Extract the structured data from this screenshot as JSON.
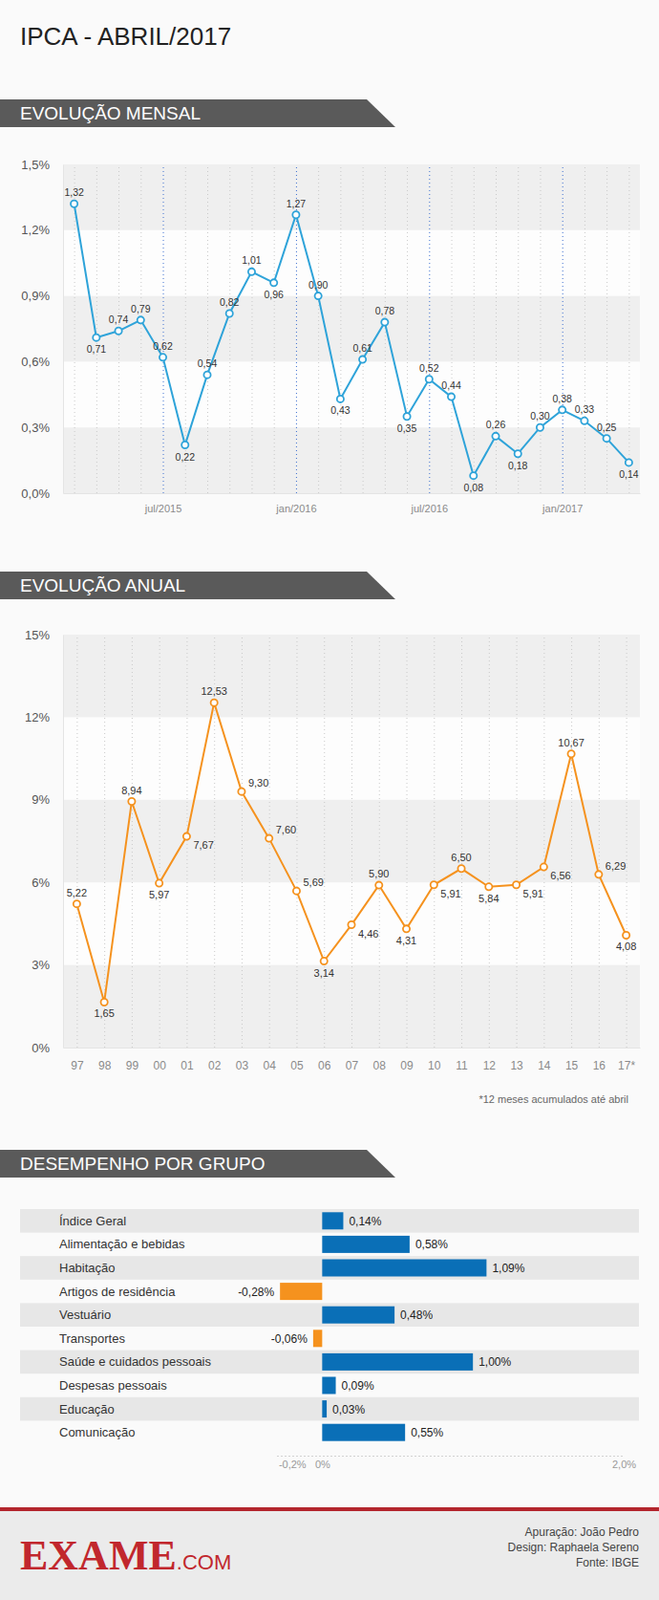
{
  "title": "IPCA - ABRIL/2017",
  "chart_data": [
    {
      "type": "line",
      "title": "EVOLUÇÃO MENSAL",
      "categories": [
        null,
        null,
        null,
        null,
        "jul/2015",
        null,
        null,
        null,
        null,
        null,
        "jan/2016",
        null,
        null,
        null,
        null,
        null,
        "jul/2016",
        null,
        null,
        null,
        null,
        null,
        "jan/2017",
        null,
        null,
        null
      ],
      "values": [
        1.32,
        0.71,
        0.74,
        0.79,
        0.62,
        0.22,
        0.54,
        0.82,
        1.01,
        0.96,
        1.27,
        0.9,
        0.43,
        0.61,
        0.78,
        0.35,
        0.52,
        0.44,
        0.08,
        0.26,
        0.18,
        0.3,
        0.38,
        0.33,
        0.25,
        0.14
      ],
      "value_labels": [
        "1,32",
        "0,71",
        "0,74",
        "0,79",
        "0,62",
        "0,22",
        "0,54",
        "0,82",
        "1,01",
        "0,96",
        "1,27",
        "0,90",
        "0,43",
        "0,61",
        "0,78",
        "0,35",
        "0,52",
        "0,44",
        "0,08",
        "0,26",
        "0,18",
        "0,30",
        "0,38",
        "0,33",
        "0,25",
        "0,14"
      ],
      "color": "#2ea3d9",
      "marker": "circle",
      "ylim": [
        0,
        1.5
      ],
      "yticks": [
        {
          "value": 0,
          "label": "0,0%"
        },
        {
          "value": 0.3,
          "label": "0,3%"
        },
        {
          "value": 0.6,
          "label": "0,6%"
        },
        {
          "value": 0.9,
          "label": "0,9%"
        },
        {
          "value": 1.2,
          "label": "1,2%"
        },
        {
          "value": 1.5,
          "label": "1,5%"
        }
      ],
      "grid": true,
      "data_labels": true
    },
    {
      "type": "line",
      "title": "EVOLUÇÃO ANUAL",
      "categories": [
        "97",
        "98",
        "99",
        "00",
        "01",
        "02",
        "03",
        "04",
        "05",
        "06",
        "07",
        "08",
        "09",
        "10",
        "11",
        "12",
        "13",
        "14",
        "15",
        "16",
        "17*"
      ],
      "values": [
        5.22,
        1.65,
        8.94,
        5.97,
        7.67,
        12.53,
        9.3,
        7.6,
        5.69,
        3.14,
        4.46,
        5.9,
        4.31,
        5.91,
        6.5,
        5.84,
        5.91,
        6.56,
        10.67,
        6.29,
        4.08
      ],
      "value_labels": [
        "5,22",
        "1,65",
        "8,94",
        "5,97",
        "7,67",
        "12,53",
        "9,30",
        "7,60",
        "5,69",
        "3,14",
        "4,46",
        "5,90",
        "4,31",
        "5,91",
        "6,50",
        "5,84",
        "5,91",
        "6,56",
        "10,67",
        "6,29",
        "4,08"
      ],
      "color": "#f5921e",
      "marker": "circle",
      "ylim": [
        0,
        15
      ],
      "yticks": [
        {
          "value": 0,
          "label": "0%"
        },
        {
          "value": 3,
          "label": "3%"
        },
        {
          "value": 6,
          "label": "6%"
        },
        {
          "value": 9,
          "label": "9%"
        },
        {
          "value": 12,
          "label": "12%"
        },
        {
          "value": 15,
          "label": "15%"
        }
      ],
      "grid": true,
      "data_labels": true,
      "annotations": [
        "*12 meses acumulados até abril"
      ]
    },
    {
      "type": "bar",
      "title": "DESEMPENHO POR GRUPO",
      "orientation": "horizontal",
      "categories": [
        "Índice Geral",
        "Alimentação e bebidas",
        "Habitação",
        "Artigos de residência",
        "Vestuário",
        "Transportes",
        "Saúde e cuidados pessoais",
        "Despesas pessoais",
        "Educação",
        "Comunicação"
      ],
      "values": [
        0.14,
        0.58,
        1.09,
        -0.28,
        0.48,
        -0.06,
        1.0,
        0.09,
        0.03,
        0.55
      ],
      "value_labels": [
        "0,14%",
        "0,58%",
        "1,09%",
        "-0,28%",
        "0,48%",
        "-0,06%",
        "1,00%",
        "0,09%",
        "0,03%",
        "0,55%"
      ],
      "colors": [
        "#0a6fb7",
        "#0a6fb7",
        "#0a6fb7",
        "#f5921e",
        "#0a6fb7",
        "#f5921e",
        "#0a6fb7",
        "#0a6fb7",
        "#0a6fb7",
        "#0a6fb7"
      ],
      "xlim": [
        -0.3,
        2.0
      ],
      "xticks": [
        {
          "value": -0.2,
          "label": "-0,2%"
        },
        {
          "value": 0,
          "label": "0%"
        },
        {
          "value": 2.0,
          "label": "2,0%"
        }
      ],
      "data_labels": true
    }
  ],
  "footer": {
    "logo": [
      "EXAME",
      ".COM"
    ],
    "credits": [
      "Apuração: João Pedro",
      "Design: Raphaela Sereno",
      "Fonte: IBGE"
    ]
  }
}
